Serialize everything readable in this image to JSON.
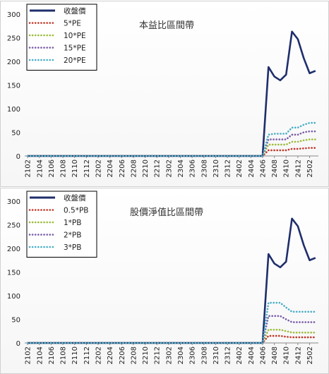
{
  "chart_data": [
    {
      "type": "line",
      "title": "本益比區間帶",
      "ylim": [
        0,
        300
      ],
      "yticks": [
        0,
        50,
        100,
        150,
        200,
        250,
        300
      ],
      "x": [
        "2102",
        "2103",
        "2104",
        "2105",
        "2106",
        "2107",
        "2108",
        "2109",
        "2110",
        "2111",
        "2112",
        "2201",
        "2202",
        "2203",
        "2204",
        "2205",
        "2206",
        "2207",
        "2208",
        "2209",
        "2210",
        "2211",
        "2212",
        "2301",
        "2302",
        "2303",
        "2304",
        "2305",
        "2306",
        "2307",
        "2308",
        "2309",
        "2310",
        "2311",
        "2312",
        "2401",
        "2402",
        "2403",
        "2404",
        "2405",
        "2406",
        "2407",
        "2408",
        "2409",
        "2410",
        "2411",
        "2412",
        "2501",
        "2502",
        "2503"
      ],
      "xtick_labels": [
        "2102",
        "2104",
        "2106",
        "2108",
        "2110",
        "2112",
        "2202",
        "2204",
        "2206",
        "2208",
        "2210",
        "2212",
        "2302",
        "2304",
        "2306",
        "2308",
        "2310",
        "2312",
        "2402",
        "2404",
        "2406",
        "2408",
        "2410",
        "2412",
        "2502"
      ],
      "grid": false,
      "legend_position": "top-left",
      "series": [
        {
          "name": "收盤價",
          "color": "#1f2e6b",
          "style": "solid",
          "values": [
            0,
            0,
            0,
            0,
            0,
            0,
            0,
            0,
            0,
            0,
            0,
            0,
            0,
            0,
            0,
            0,
            0,
            0,
            0,
            0,
            0,
            0,
            0,
            0,
            0,
            0,
            0,
            0,
            0,
            0,
            0,
            0,
            0,
            0,
            0,
            0,
            0,
            0,
            0,
            0,
            0,
            188,
            168,
            160,
            172,
            263,
            247,
            207,
            175,
            180
          ]
        },
        {
          "name": "5*PE",
          "color": "#c0392b",
          "style": "dotted",
          "values": [
            0,
            0,
            0,
            0,
            0,
            0,
            0,
            0,
            0,
            0,
            0,
            0,
            0,
            0,
            0,
            0,
            0,
            0,
            0,
            0,
            0,
            0,
            0,
            0,
            0,
            0,
            0,
            0,
            0,
            0,
            0,
            0,
            0,
            0,
            0,
            0,
            0,
            0,
            0,
            0,
            0,
            12,
            12,
            12,
            12,
            15,
            15,
            16,
            17,
            17
          ]
        },
        {
          "name": "10*PE",
          "color": "#9bbb3a",
          "style": "dotted",
          "values": [
            0,
            0,
            0,
            0,
            0,
            0,
            0,
            0,
            0,
            0,
            0,
            0,
            0,
            0,
            0,
            0,
            0,
            0,
            0,
            0,
            0,
            0,
            0,
            0,
            0,
            0,
            0,
            0,
            0,
            0,
            0,
            0,
            0,
            0,
            0,
            0,
            0,
            0,
            0,
            0,
            0,
            24,
            24,
            24,
            24,
            30,
            30,
            33,
            35,
            35
          ]
        },
        {
          "name": "15*PE",
          "color": "#7a5ca8",
          "style": "dotted",
          "values": [
            0,
            0,
            0,
            0,
            0,
            0,
            0,
            0,
            0,
            0,
            0,
            0,
            0,
            0,
            0,
            0,
            0,
            0,
            0,
            0,
            0,
            0,
            0,
            0,
            0,
            0,
            0,
            0,
            0,
            0,
            0,
            0,
            0,
            0,
            0,
            0,
            0,
            0,
            0,
            0,
            0,
            35,
            35,
            35,
            35,
            45,
            45,
            50,
            52,
            52
          ]
        },
        {
          "name": "20*PE",
          "color": "#4aaec6",
          "style": "dotted",
          "values": [
            0,
            0,
            0,
            0,
            0,
            0,
            0,
            0,
            0,
            0,
            0,
            0,
            0,
            0,
            0,
            0,
            0,
            0,
            0,
            0,
            0,
            0,
            0,
            0,
            0,
            0,
            0,
            0,
            0,
            0,
            0,
            0,
            0,
            0,
            0,
            0,
            0,
            0,
            0,
            0,
            0,
            45,
            47,
            47,
            47,
            60,
            60,
            66,
            70,
            70
          ]
        }
      ]
    },
    {
      "type": "line",
      "title": "股價淨值比區間帶",
      "ylim": [
        0,
        300
      ],
      "yticks": [
        0,
        50,
        100,
        150,
        200,
        250,
        300
      ],
      "x": [
        "2102",
        "2103",
        "2104",
        "2105",
        "2106",
        "2107",
        "2108",
        "2109",
        "2110",
        "2111",
        "2112",
        "2201",
        "2202",
        "2203",
        "2204",
        "2205",
        "2206",
        "2207",
        "2208",
        "2209",
        "2210",
        "2211",
        "2212",
        "2301",
        "2302",
        "2303",
        "2304",
        "2305",
        "2306",
        "2307",
        "2308",
        "2309",
        "2310",
        "2311",
        "2312",
        "2401",
        "2402",
        "2403",
        "2404",
        "2405",
        "2406",
        "2407",
        "2408",
        "2409",
        "2410",
        "2411",
        "2412",
        "2501",
        "2502",
        "2503"
      ],
      "xtick_labels": [
        "2102",
        "2104",
        "2106",
        "2108",
        "2110",
        "2112",
        "2202",
        "2204",
        "2206",
        "2208",
        "2210",
        "2212",
        "2302",
        "2304",
        "2306",
        "2308",
        "2310",
        "2312",
        "2402",
        "2404",
        "2406",
        "2408",
        "2410",
        "2412",
        "2502"
      ],
      "grid": false,
      "legend_position": "top-left",
      "series": [
        {
          "name": "收盤價",
          "color": "#1f2e6b",
          "style": "solid",
          "values": [
            0,
            0,
            0,
            0,
            0,
            0,
            0,
            0,
            0,
            0,
            0,
            0,
            0,
            0,
            0,
            0,
            0,
            0,
            0,
            0,
            0,
            0,
            0,
            0,
            0,
            0,
            0,
            0,
            0,
            0,
            0,
            0,
            0,
            0,
            0,
            0,
            0,
            0,
            0,
            0,
            0,
            188,
            168,
            160,
            172,
            263,
            247,
            207,
            175,
            180
          ]
        },
        {
          "name": "0.5*PB",
          "color": "#c0392b",
          "style": "dotted",
          "values": [
            0,
            0,
            0,
            0,
            0,
            0,
            0,
            0,
            0,
            0,
            0,
            0,
            0,
            0,
            0,
            0,
            0,
            0,
            0,
            0,
            0,
            0,
            0,
            0,
            0,
            0,
            0,
            0,
            0,
            0,
            0,
            0,
            0,
            0,
            0,
            0,
            0,
            0,
            0,
            0,
            0,
            15,
            15,
            15,
            13,
            12,
            12,
            12,
            12,
            12
          ]
        },
        {
          "name": "1*PB",
          "color": "#9bbb3a",
          "style": "dotted",
          "values": [
            0,
            0,
            0,
            0,
            0,
            0,
            0,
            0,
            0,
            0,
            0,
            0,
            0,
            0,
            0,
            0,
            0,
            0,
            0,
            0,
            0,
            0,
            0,
            0,
            0,
            0,
            0,
            0,
            0,
            0,
            0,
            0,
            0,
            0,
            0,
            0,
            0,
            0,
            0,
            0,
            0,
            28,
            28,
            28,
            25,
            22,
            22,
            22,
            22,
            22
          ]
        },
        {
          "name": "2*PB",
          "color": "#7a5ca8",
          "style": "dotted",
          "values": [
            0,
            0,
            0,
            0,
            0,
            0,
            0,
            0,
            0,
            0,
            0,
            0,
            0,
            0,
            0,
            0,
            0,
            0,
            0,
            0,
            0,
            0,
            0,
            0,
            0,
            0,
            0,
            0,
            0,
            0,
            0,
            0,
            0,
            0,
            0,
            0,
            0,
            0,
            0,
            0,
            0,
            57,
            57,
            57,
            50,
            44,
            44,
            44,
            44,
            44
          ]
        },
        {
          "name": "3*PB",
          "color": "#4aaec6",
          "style": "dotted",
          "values": [
            0,
            0,
            0,
            0,
            0,
            0,
            0,
            0,
            0,
            0,
            0,
            0,
            0,
            0,
            0,
            0,
            0,
            0,
            0,
            0,
            0,
            0,
            0,
            0,
            0,
            0,
            0,
            0,
            0,
            0,
            0,
            0,
            0,
            0,
            0,
            0,
            0,
            0,
            0,
            0,
            0,
            85,
            85,
            85,
            75,
            66,
            66,
            66,
            66,
            66
          ]
        }
      ]
    }
  ]
}
